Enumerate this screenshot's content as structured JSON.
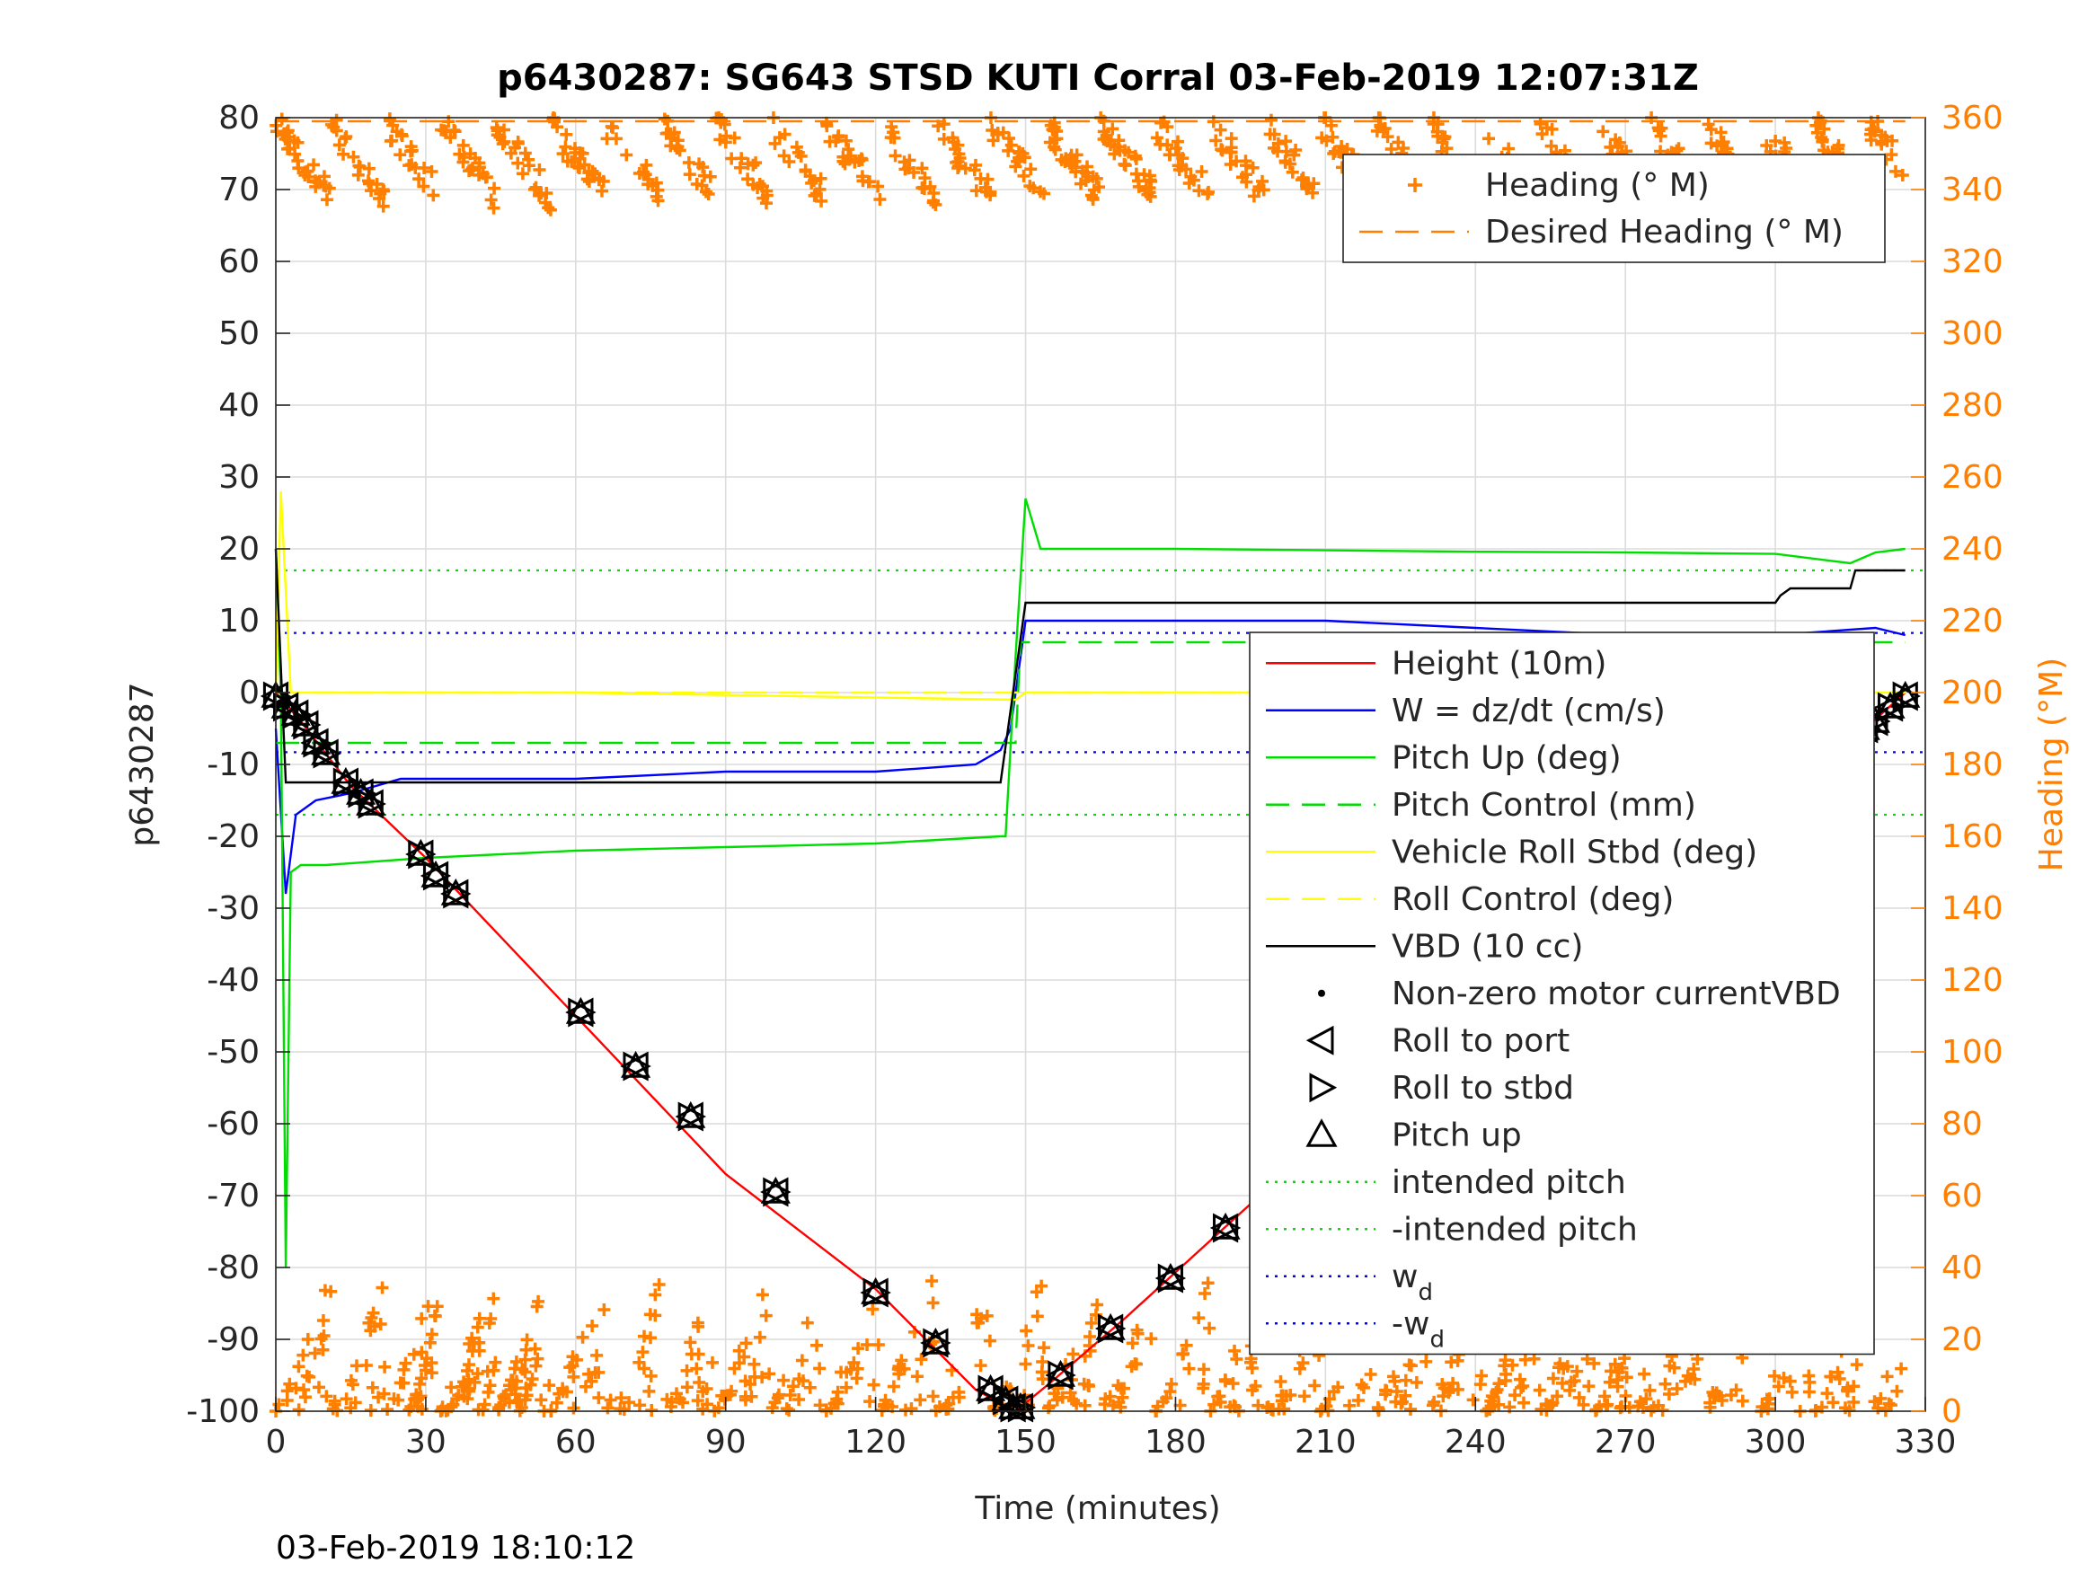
{
  "title": "p6430287: SG643 STSD KUTI Corral 03-Feb-2019 12:07:31Z",
  "timestamp": "03-Feb-2019 18:10:12",
  "colors": {
    "heading": "#ff7f00",
    "axis": "#262626",
    "grid": "#dcdcdc"
  },
  "chart_data": {
    "type": "line",
    "title": "p6430287: SG643 STSD KUTI Corral 03-Feb-2019 12:07:31Z",
    "xlabel": "Time (minutes)",
    "ylabel": "p6430287",
    "y2label": "Heading (°M)",
    "xlim": [
      0,
      330
    ],
    "ylim": [
      -100,
      80
    ],
    "y2lim": [
      0,
      360
    ],
    "xticks": [
      "0",
      "30",
      "60",
      "90",
      "120",
      "150",
      "180",
      "210",
      "240",
      "270",
      "300",
      "330"
    ],
    "yticks": [
      "80",
      "70",
      "60",
      "50",
      "40",
      "30",
      "20",
      "10",
      "0",
      "-10",
      "-20",
      "-30",
      "-40",
      "-50",
      "-60",
      "-70",
      "-80",
      "-90",
      "-100"
    ],
    "y2ticks": [
      "360",
      "340",
      "320",
      "300",
      "280",
      "260",
      "240",
      "220",
      "200",
      "180",
      "160",
      "140",
      "120",
      "100",
      "80",
      "60",
      "40",
      "20",
      "0"
    ],
    "grid": true,
    "legend_right_axis": {
      "placement": "top-right",
      "entries": [
        {
          "label": "Heading (° M)",
          "color": "#ff7f00",
          "style": "plus"
        },
        {
          "label": "Desired Heading (° M)",
          "color": "#ff7f00",
          "style": "dashed"
        }
      ]
    },
    "legend_left_axis": {
      "placement": "right",
      "entries": [
        {
          "label": "Height (10m)",
          "color": "#ff0000",
          "style": "solid"
        },
        {
          "label": "W = dz/dt (cm/s)",
          "color": "#0000ff",
          "style": "solid"
        },
        {
          "label": "Pitch Up (deg)",
          "color": "#00dd00",
          "style": "solid"
        },
        {
          "label": "Pitch Control (mm)",
          "color": "#00dd00",
          "style": "dashed"
        },
        {
          "label": "Vehicle Roll Stbd (deg)",
          "color": "#ffff00",
          "style": "solid"
        },
        {
          "label": "Roll Control (deg)",
          "color": "#ffff00",
          "style": "dashed"
        },
        {
          "label": "VBD (10 cc)",
          "color": "#000000",
          "style": "solid"
        },
        {
          "label": "Non-zero motor currentVBD",
          "color": "#000000",
          "style": "dot"
        },
        {
          "label": "Roll to port",
          "color": "#000000",
          "style": "tri-left"
        },
        {
          "label": "Roll to stbd",
          "color": "#000000",
          "style": "tri-right"
        },
        {
          "label": "Pitch up",
          "color": "#000000",
          "style": "tri-up"
        },
        {
          "label": "intended pitch",
          "color": "#00dd00",
          "style": "dotted"
        },
        {
          "label": "-intended pitch",
          "color": "#00dd00",
          "style": "dotted"
        },
        {
          "label": "w",
          "sub": "d",
          "color": "#0000ff",
          "style": "dotted"
        },
        {
          "label": "-w",
          "sub": "d",
          "color": "#0000ff",
          "style": "dotted"
        }
      ]
    },
    "reference_lines": [
      {
        "name": "intended pitch",
        "y": 17,
        "color": "#00dd00",
        "style": "dotted"
      },
      {
        "name": "-intended pitch",
        "y": -17,
        "color": "#00dd00",
        "style": "dotted"
      },
      {
        "name": "w_d",
        "y": 8.3,
        "color": "#0000ff",
        "style": "dotted"
      },
      {
        "name": "-w_d",
        "y": -8.3,
        "color": "#0000ff",
        "style": "dotted"
      }
    ],
    "series": [
      {
        "name": "Height (10m)",
        "axis": "left",
        "color": "#ff0000",
        "x": [
          0,
          5,
          15,
          30,
          60,
          90,
          120,
          140,
          148,
          155,
          170,
          200,
          230,
          260,
          290,
          310,
          326
        ],
        "y": [
          0,
          -4,
          -13,
          -23,
          -45,
          -67,
          -83,
          -97,
          -100,
          -96,
          -87,
          -68,
          -50,
          -33,
          -18,
          -10,
          0
        ]
      },
      {
        "name": "W = dz/dt (cm/s)",
        "axis": "left",
        "color": "#0000ff",
        "x": [
          0,
          2,
          4,
          8,
          15,
          25,
          40,
          60,
          90,
          120,
          140,
          145,
          147,
          150,
          155,
          180,
          210,
          240,
          270,
          300,
          320,
          326
        ],
        "y": [
          -5,
          -28,
          -17,
          -15,
          -14,
          -12,
          -12,
          -12,
          -11,
          -11,
          -10,
          -8,
          -5,
          10,
          10,
          10,
          10,
          9,
          8,
          8,
          9,
          8
        ]
      },
      {
        "name": "Pitch Up (deg)",
        "axis": "left",
        "color": "#00dd00",
        "x": [
          0,
          1,
          2,
          3,
          5,
          10,
          30,
          60,
          90,
          120,
          145,
          146,
          148,
          150,
          153,
          180,
          210,
          240,
          270,
          300,
          315,
          320,
          326
        ],
        "y": [
          20,
          0,
          -80,
          -25,
          -24,
          -24,
          -23,
          -22,
          -21.5,
          -21,
          -20,
          -20,
          5,
          27,
          20,
          20,
          19.8,
          19.6,
          19.5,
          19.3,
          18,
          19.5,
          20
        ]
      },
      {
        "name": "Pitch Control (mm)",
        "axis": "left",
        "color": "#00dd00",
        "style": "dashed",
        "x": [
          0,
          148,
          149,
          326
        ],
        "y": [
          -7,
          -7,
          7,
          7
        ]
      },
      {
        "name": "Vehicle Roll Stbd (deg)",
        "axis": "left",
        "color": "#ffff00",
        "x": [
          0,
          1,
          3,
          10,
          60,
          148,
          150,
          200,
          260,
          326
        ],
        "y": [
          0,
          28,
          0,
          0,
          0,
          -1,
          0,
          0,
          0,
          0
        ]
      },
      {
        "name": "Roll Control (deg)",
        "axis": "left",
        "color": "#ffff00",
        "style": "dashed",
        "x": [
          0,
          326
        ],
        "y": [
          0,
          0
        ]
      },
      {
        "name": "VBD (10 cc)",
        "axis": "left",
        "color": "#000000",
        "x": [
          0,
          2,
          145,
          150,
          152,
          300,
          301,
          303,
          315,
          316,
          326
        ],
        "y": [
          20,
          -12.5,
          -12.5,
          12.5,
          12.5,
          12.5,
          13.5,
          14.5,
          14.5,
          17,
          17
        ]
      },
      {
        "name": "Desired Heading (° M)",
        "axis": "right",
        "color": "#ff7f00",
        "style": "dashed",
        "x": [
          0,
          326
        ],
        "y": [
          359,
          359
        ]
      }
    ],
    "markers": {
      "pitch_up": {
        "x": [
          0,
          2,
          4,
          6,
          8,
          10,
          14,
          17,
          19,
          29,
          32,
          36,
          61,
          72,
          83,
          100,
          120,
          132,
          143,
          146,
          147.5,
          149,
          157,
          167,
          179,
          190,
          202,
          224,
          236,
          251,
          267,
          282,
          286,
          305,
          308,
          311,
          318,
          320,
          323,
          326
        ],
        "y": [
          -0.5,
          -2,
          -3,
          -4.5,
          -7,
          -8.5,
          -12.5,
          -14,
          -15.5,
          -22.5,
          -25.5,
          -28,
          -44.5,
          -52,
          -59,
          -69.5,
          -83.5,
          -90.5,
          -97,
          -98.5,
          -99.5,
          -99.5,
          -95,
          -88.5,
          -81.5,
          -74.5,
          -67.5,
          -55,
          -48.5,
          -39.5,
          -31,
          -23,
          -21,
          -12,
          -10,
          -9,
          -5,
          -4,
          -2,
          -0.5
        ]
      },
      "heading": {
        "top_band": [
          356,
          360
        ],
        "bottom_band": [
          0,
          40
        ]
      }
    }
  }
}
